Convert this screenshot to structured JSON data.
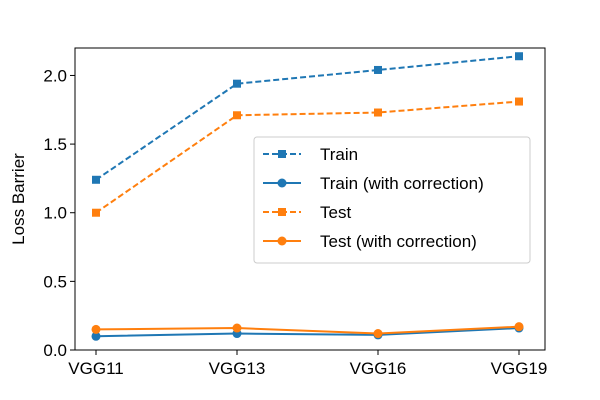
{
  "chart_data": {
    "type": "line",
    "title": "",
    "xlabel": "",
    "ylabel": "Loss Barrier",
    "categories": [
      "VGG11",
      "VGG13",
      "VGG16",
      "VGG19"
    ],
    "ylim": [
      0,
      2.2
    ],
    "yticks": [
      0.0,
      0.5,
      1.0,
      1.5,
      2.0
    ],
    "ytick_labels": [
      "0.0",
      "0.5",
      "1.0",
      "1.5",
      "2.0"
    ],
    "grid": false,
    "legend_position": "center-right",
    "series": [
      {
        "name": "Train",
        "values": [
          1.24,
          1.94,
          2.04,
          2.14
        ],
        "color": "#1f77b4",
        "dashed": true,
        "marker": "square"
      },
      {
        "name": "Train (with correction)",
        "values": [
          0.1,
          0.12,
          0.11,
          0.16
        ],
        "color": "#1f77b4",
        "dashed": false,
        "marker": "circle"
      },
      {
        "name": "Test",
        "values": [
          1.0,
          1.71,
          1.73,
          1.81
        ],
        "color": "#ff7f0e",
        "dashed": true,
        "marker": "square"
      },
      {
        "name": "Test (with correction)",
        "values": [
          0.15,
          0.16,
          0.12,
          0.17
        ],
        "color": "#ff7f0e",
        "dashed": false,
        "marker": "circle"
      }
    ]
  }
}
